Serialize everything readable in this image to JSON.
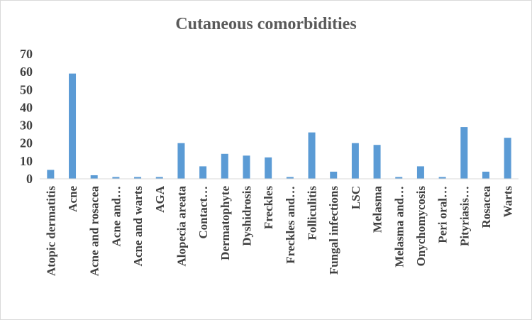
{
  "chart_data": {
    "type": "bar",
    "title": "Cutaneous comorbidities",
    "xlabel": "",
    "ylabel": "",
    "ylim": [
      0,
      70
    ],
    "yticks": [
      0,
      10,
      20,
      30,
      40,
      50,
      60,
      70
    ],
    "grid": false,
    "legend": "none",
    "bar_color": "#5b9bd5",
    "categories": [
      "Atopic dermatitis",
      "Acne",
      "Acne and rosacea",
      "Acne and…",
      "Acne and warts",
      "AGA",
      "Alopecia areata",
      "Contact…",
      "Dermatophyte",
      "Dyshidrosis",
      "Freckles",
      "Freckles and…",
      "Folliculitis",
      "Fungal infections",
      "LSC",
      "Melasma",
      "Melasma and…",
      "Onychomycosis",
      "Peri oral…",
      "Pityriasis…",
      "Rosacea",
      "Warts"
    ],
    "values": [
      5,
      59,
      2,
      1,
      1,
      1,
      20,
      7,
      14,
      13,
      12,
      1,
      26,
      4,
      20,
      19,
      1,
      7,
      1,
      29,
      4,
      23
    ]
  }
}
